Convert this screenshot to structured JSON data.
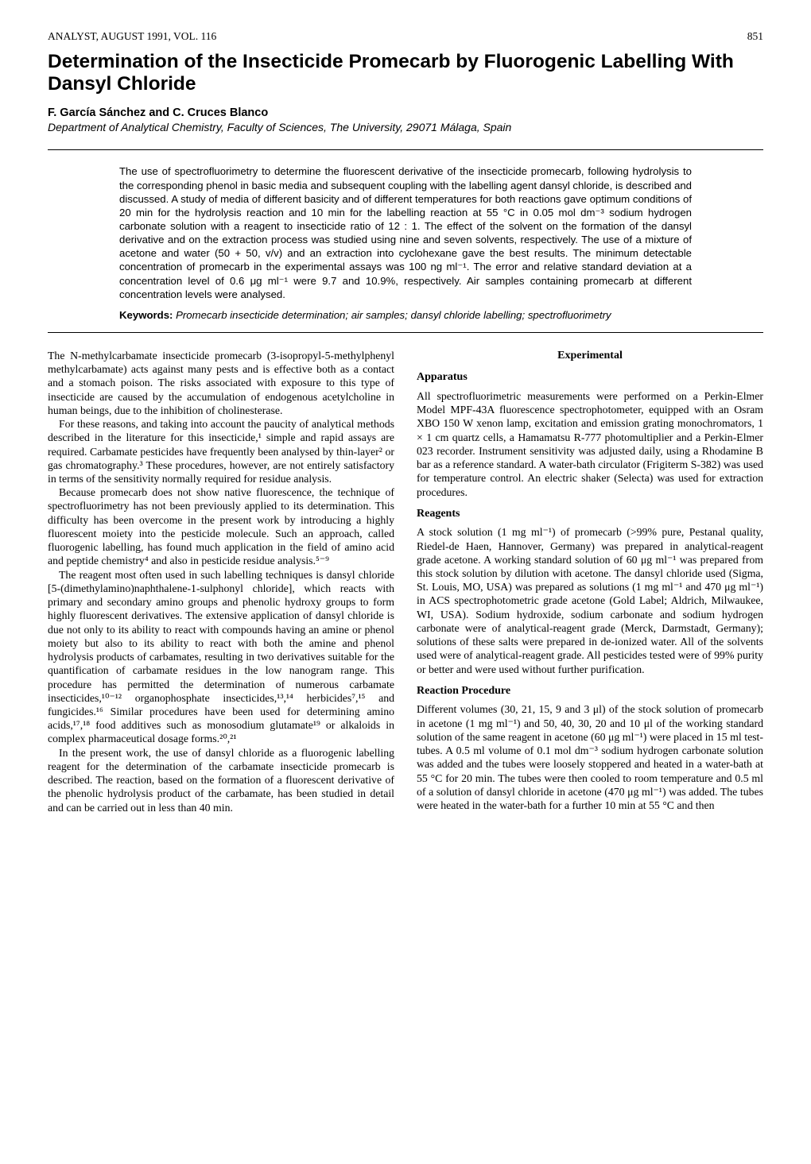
{
  "header": {
    "journal": "ANALYST, AUGUST 1991, VOL. 116",
    "page": "851"
  },
  "title": "Determination of the Insecticide Promecarb by Fluorogenic Labelling With Dansyl Chloride",
  "authors": "F. García Sánchez and C. Cruces Blanco",
  "affiliation": "Department of Analytical Chemistry, Faculty of Sciences, The University, 29071 Málaga, Spain",
  "abstract": "The use of spectrofluorimetry to determine the fluorescent derivative of the insecticide promecarb, following hydrolysis to the corresponding phenol in basic media and subsequent coupling with the labelling agent dansyl chloride, is described and discussed. A study of media of different basicity and of different temperatures for both reactions gave optimum conditions of 20 min for the hydrolysis reaction and 10 min for the labelling reaction at 55 °C in 0.05 mol dm⁻³ sodium hydrogen carbonate solution with a reagent to insecticide ratio of 12 : 1. The effect of the solvent on the formation of the dansyl derivative and on the extraction process was studied using nine and seven solvents, respectively. The use of a mixture of acetone and water (50 + 50, v/v) and an extraction into cyclohexane gave the best results. The minimum detectable concentration of promecarb in the experimental assays was 100 ng ml⁻¹. The error and relative standard deviation at a concentration level of 0.6 μg ml⁻¹ were 9.7 and 10.9%, respectively. Air samples containing promecarb at different concentration levels were analysed.",
  "keywords_label": "Keywords:",
  "keywords": "Promecarb insecticide determination; air samples; dansyl chloride labelling; spectrofluorimetry",
  "left": {
    "p1": "The N-methylcarbamate insecticide promecarb (3-isopropyl-5-methylphenyl methylcarbamate) acts against many pests and is effective both as a contact and a stomach poison. The risks associated with exposure to this type of insecticide are caused by the accumulation of endogenous acetylcholine in human beings, due to the inhibition of cholinesterase.",
    "p2": "For these reasons, and taking into account the paucity of analytical methods described in the literature for this insecticide,¹ simple and rapid assays are required. Carbamate pesticides have frequently been analysed by thin-layer² or gas chromatography.³ These procedures, however, are not entirely satisfactory in terms of the sensitivity normally required for residue analysis.",
    "p3": "Because promecarb does not show native fluorescence, the technique of spectrofluorimetry has not been previously applied to its determination. This difficulty has been overcome in the present work by introducing a highly fluorescent moiety into the pesticide molecule. Such an approach, called fluorogenic labelling, has found much application in the field of amino acid and peptide chemistry⁴ and also in pesticide residue analysis.⁵⁻⁹",
    "p4": "The reagent most often used in such labelling techniques is dansyl chloride [5-(dimethylamino)naphthalene-1-sulphonyl chloride], which reacts with primary and secondary amino groups and phenolic hydroxy groups to form highly fluorescent derivatives. The extensive application of dansyl chloride is due not only to its ability to react with compounds having an amine or phenol moiety but also to its ability to react with both the amine and phenol hydrolysis products of carbamates, resulting in two derivatives suitable for the quantification of carbamate residues in the low nanogram range. This procedure has permitted the determination of numerous carbamate insecticides,¹⁰⁻¹² organophosphate insecticides,¹³,¹⁴ herbicides⁷,¹⁵ and fungicides.¹⁶ Similar procedures have been used for determining amino acids,¹⁷,¹⁸ food additives such as monosodium glutamate¹⁹ or alkaloids in complex pharmaceutical dosage forms.²⁰,²¹",
    "p5": "In the present work, the use of dansyl chloride as a fluorogenic labelling reagent for the determination of the carbamate insecticide promecarb is described. The reaction, based on the formation of a fluorescent derivative of the phenolic hydrolysis product of the carbamate, has been studied in detail and can be carried out in less than 40 min."
  },
  "right": {
    "h_exp": "Experimental",
    "h_app": "Apparatus",
    "app": "All spectrofluorimetric measurements were performed on a Perkin-Elmer Model MPF-43A fluorescence spectrophotometer, equipped with an Osram XBO 150 W xenon lamp, excitation and emission grating monochromators, 1 × 1 cm quartz cells, a Hamamatsu R-777 photomultiplier and a Perkin-Elmer 023 recorder. Instrument sensitivity was adjusted daily, using a Rhodamine B bar as a reference standard. A water-bath circulator (Frigiterm S-382) was used for temperature control. An electric shaker (Selecta) was used for extraction procedures.",
    "h_rea": "Reagents",
    "rea": "A stock solution (1 mg ml⁻¹) of promecarb (>99% pure, Pestanal quality, Riedel-de Haen, Hannover, Germany) was prepared in analytical-reagent grade acetone. A working standard solution of 60 μg ml⁻¹ was prepared from this stock solution by dilution with acetone. The dansyl chloride used (Sigma, St. Louis, MO, USA) was prepared as solutions (1 mg ml⁻¹ and 470 μg ml⁻¹) in ACS spectrophotometric grade acetone (Gold Label; Aldrich, Milwaukee, WI, USA). Sodium hydroxide, sodium carbonate and sodium hydrogen carbonate were of analytical-reagent grade (Merck, Darmstadt, Germany); solutions of these salts were prepared in de-ionized water. All of the solvents used were of analytical-reagent grade. All pesticides tested were of 99% purity or better and were used without further purification.",
    "h_proc": "Reaction Procedure",
    "proc": "Different volumes (30, 21, 15, 9 and 3 μl) of the stock solution of promecarb in acetone (1 mg ml⁻¹) and 50, 40, 30, 20 and 10 μl of the working standard solution of the same reagent in acetone (60 μg ml⁻¹) were placed in 15 ml test-tubes. A 0.5 ml volume of 0.1 mol dm⁻³ sodium hydrogen carbonate solution was added and the tubes were loosely stoppered and heated in a water-bath at 55 °C for 20 min. The tubes were then cooled to room temperature and 0.5 ml of a solution of dansyl chloride in acetone (470 μg ml⁻¹) was added. The tubes were heated in the water-bath for a further 10 min at 55 °C and then"
  }
}
